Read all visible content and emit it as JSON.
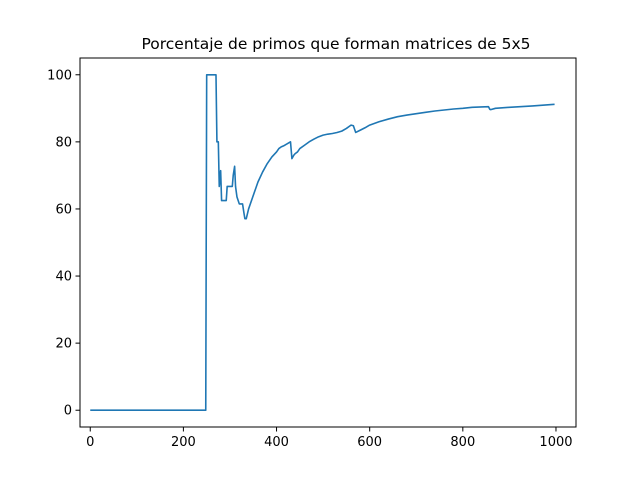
{
  "chart_data": {
    "type": "line",
    "title": "Porcentaje de primos que forman matrices de 5x5",
    "xlabel": "",
    "ylabel": "",
    "xlim": [
      -22,
      1043
    ],
    "ylim": [
      -5,
      105
    ],
    "xticks": [
      0,
      200,
      400,
      600,
      800,
      1000
    ],
    "yticks": [
      0,
      20,
      40,
      60,
      80,
      100
    ],
    "grid": false,
    "legend": "none",
    "series": [
      {
        "color": "#1f77b4",
        "x": [
          0,
          248,
          250,
          270,
          272,
          275,
          277,
          280,
          282,
          285,
          292,
          294,
          300,
          305,
          307,
          310,
          312,
          315,
          320,
          325,
          327,
          330,
          332,
          335,
          340,
          350,
          360,
          370,
          380,
          390,
          400,
          405,
          410,
          415,
          420,
          425,
          430,
          433,
          437,
          440,
          445,
          450,
          460,
          470,
          480,
          490,
          500,
          510,
          520,
          530,
          540,
          550,
          560,
          565,
          570,
          580,
          590,
          600,
          620,
          640,
          660,
          680,
          700,
          720,
          740,
          760,
          780,
          800,
          820,
          840,
          855,
          858,
          860,
          870,
          900,
          950,
          997
        ],
        "y": [
          0,
          0,
          100,
          100,
          80,
          80,
          66.7,
          71.4,
          62.5,
          62.5,
          62.5,
          66.7,
          66.7,
          66.7,
          70.0,
          72.7,
          66.7,
          63.6,
          61.5,
          61.5,
          61.5,
          58.8,
          57.1,
          57.1,
          60.0,
          64.0,
          68.0,
          71.0,
          73.5,
          75.5,
          77.0,
          78.0,
          78.5,
          78.8,
          79.2,
          79.6,
          80.0,
          75.0,
          76.0,
          76.5,
          77.0,
          78.0,
          79.0,
          80.0,
          80.8,
          81.5,
          82.0,
          82.3,
          82.5,
          82.8,
          83.2,
          84.0,
          85.0,
          84.8,
          82.8,
          83.5,
          84.2,
          85.0,
          86.0,
          86.8,
          87.5,
          88.0,
          88.4,
          88.8,
          89.2,
          89.5,
          89.8,
          90.0,
          90.3,
          90.4,
          90.5,
          89.7,
          89.6,
          90.0,
          90.3,
          90.7,
          91.2
        ]
      }
    ]
  }
}
